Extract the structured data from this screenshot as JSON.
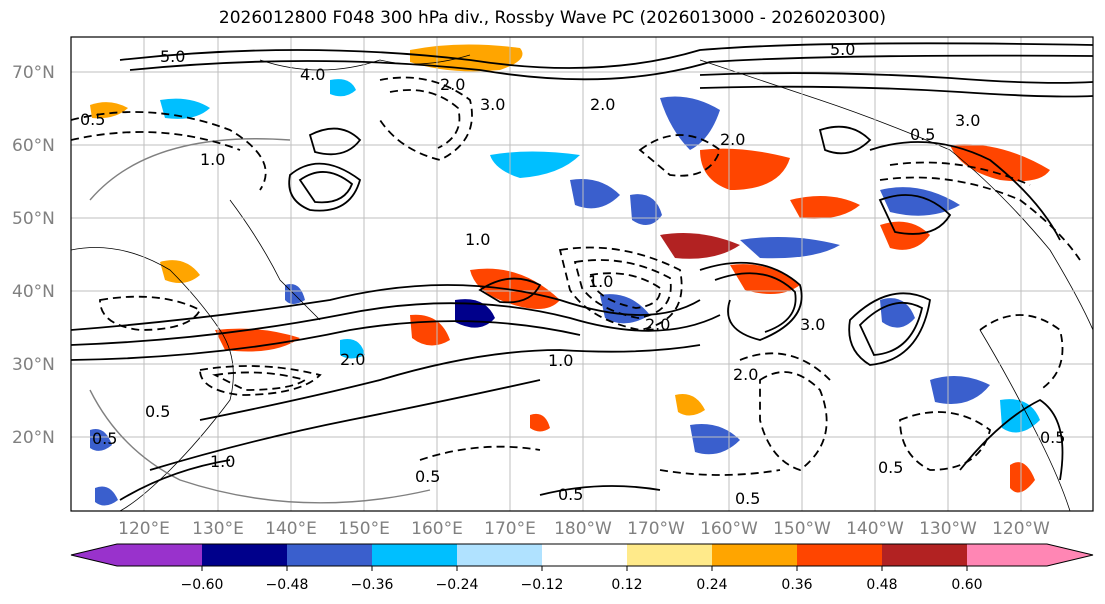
{
  "title": "2026012800 F048 300 hPa div., Rossby Wave PC (2026013000 - 2026020300)",
  "lat_labels": [
    "70°N",
    "60°N",
    "50°N",
    "40°N",
    "30°N",
    "20°N"
  ],
  "lat_values": [
    70,
    60,
    50,
    40,
    30,
    20
  ],
  "lon_labels": [
    "120°E",
    "130°E",
    "140°E",
    "150°E",
    "160°E",
    "170°E",
    "180°W",
    "170°W",
    "160°W",
    "150°W",
    "140°W",
    "130°W",
    "120°W"
  ],
  "colorbar": {
    "tick_labels": [
      "−0.60",
      "−0.48",
      "−0.36",
      "−0.24",
      "−0.12",
      "0.12",
      "0.24",
      "0.36",
      "0.48",
      "0.60"
    ],
    "colors": [
      "#9932cc",
      "#00008b",
      "#3a5fcd",
      "#00bfff",
      "#b0e2ff",
      "#ffffff",
      "#ffea8a",
      "#ffa500",
      "#ff4500",
      "#b22222",
      "#ff86b4"
    ]
  },
  "contour_labels": [
    "5.0",
    "4.0",
    "3.0",
    "2.0",
    "1.0",
    "0.5",
    "3.0",
    "2.0",
    "1.0",
    "0.5",
    "1.0",
    "2.0",
    "5.0",
    "2.0",
    "0.5",
    "0.5",
    "0.5",
    "3.0",
    "2.0",
    "1.0",
    "0.5",
    "1.0",
    "2.0",
    "0.5",
    "0.5",
    "0.5"
  ]
}
